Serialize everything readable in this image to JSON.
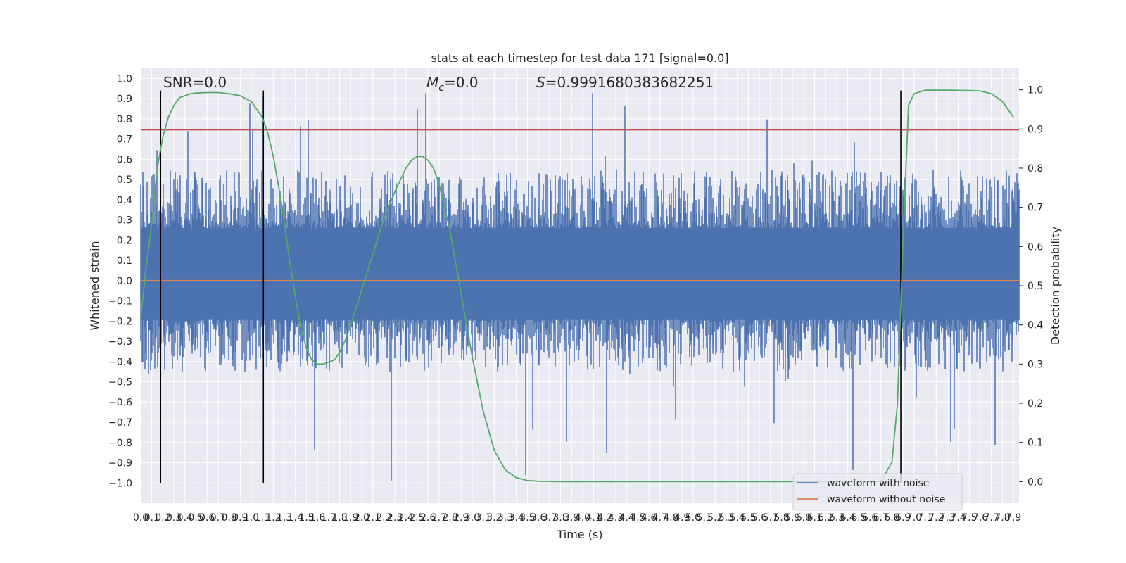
{
  "chart_data": {
    "type": "line",
    "title": "stats at each timestep for test data 171 [signal=0.0]",
    "xlabel": "Time (s)",
    "ylabel": "Whitened strain",
    "ylabel_right": "Detection probability",
    "xlim": [
      0.0,
      7.95
    ],
    "ylim": [
      -1.1,
      1.05
    ],
    "ylim_right": [
      -0.055,
      1.055
    ],
    "x_ticks": [
      0.0,
      0.1,
      0.2,
      0.3,
      0.4,
      0.5,
      0.6,
      0.7,
      0.8,
      0.9,
      1.0,
      1.1,
      1.2,
      1.3,
      1.4,
      1.5,
      1.6,
      1.7,
      1.8,
      1.9,
      2.0,
      2.1,
      2.2,
      2.3,
      2.4,
      2.5,
      2.6,
      2.7,
      2.8,
      2.9,
      3.0,
      3.1,
      3.2,
      3.3,
      3.4,
      3.5,
      3.6,
      3.7,
      3.8,
      3.9,
      4.0,
      4.1,
      4.2,
      4.3,
      4.4,
      4.5,
      4.6,
      4.7,
      4.8,
      4.9,
      5.0,
      5.1,
      5.2,
      5.3,
      5.4,
      5.5,
      5.6,
      5.7,
      5.8,
      5.9,
      6.0,
      6.1,
      6.2,
      6.3,
      6.4,
      6.5,
      6.6,
      6.7,
      6.8,
      6.9,
      7.0,
      7.1,
      7.2,
      7.3,
      7.4,
      7.5,
      7.6,
      7.7,
      7.8,
      7.9
    ],
    "y_ticks": [
      "1.0",
      "0.9",
      "0.8",
      "0.7",
      "0.6",
      "0.5",
      "0.4",
      "0.3",
      "0.2",
      "0.1",
      "0.0",
      "−0.1",
      "−0.2",
      "−0.3",
      "−0.4",
      "−0.5",
      "−0.6",
      "−0.7",
      "−0.8",
      "−0.9",
      "−1.0"
    ],
    "y_right_ticks": [
      "1.0",
      "0.9",
      "0.8",
      "0.7",
      "0.6",
      "0.5",
      "0.4",
      "0.3",
      "0.2",
      "0.1",
      "0.0"
    ],
    "grid": true,
    "legend_position": "lower-right",
    "annotations": {
      "snr": "SNR=0.0",
      "mc_symbol": "M",
      "mc_subscript": "c",
      "mc_value": "=0.0",
      "s_symbol": "S",
      "s_value": "=0.9991680383682251"
    },
    "threshold": {
      "value": 0.745,
      "color": "#c44e52"
    },
    "marker_lines_x": [
      0.18,
      1.11,
      6.88
    ],
    "marker_lines_yrange": [
      -1.0,
      0.94
    ],
    "series": [
      {
        "name": "waveform with noise",
        "color": "#4c72b0",
        "kind": "noise",
        "sample_rate": 1024,
        "baseline": 0.06,
        "typical_max": 0.55,
        "typical_min": -0.45,
        "peak_max": 0.94,
        "peak_min": -1.0
      },
      {
        "name": "waveform without noise",
        "color": "#dd8452",
        "kind": "flat",
        "value": 0.0
      },
      {
        "name": "Detection probability",
        "color": "#55a868",
        "axis": "right",
        "x": [
          0.0,
          0.05,
          0.1,
          0.15,
          0.2,
          0.25,
          0.3,
          0.35,
          0.4,
          0.45,
          0.5,
          0.6,
          0.7,
          0.8,
          0.9,
          1.0,
          1.05,
          1.1,
          1.15,
          1.2,
          1.25,
          1.3,
          1.35,
          1.4,
          1.45,
          1.5,
          1.55,
          1.6,
          1.65,
          1.7,
          1.75,
          1.8,
          1.85,
          1.9,
          2.0,
          2.1,
          2.2,
          2.3,
          2.4,
          2.45,
          2.5,
          2.55,
          2.6,
          2.65,
          2.7,
          2.8,
          2.9,
          3.0,
          3.1,
          3.2,
          3.3,
          3.4,
          3.5,
          3.6,
          3.8,
          4.0,
          4.5,
          5.0,
          5.5,
          6.0,
          6.5,
          6.7,
          6.8,
          6.85,
          6.9,
          6.95,
          7.0,
          7.1,
          7.3,
          7.5,
          7.6,
          7.7,
          7.8,
          7.9
        ],
        "values": [
          0.42,
          0.55,
          0.66,
          0.8,
          0.88,
          0.93,
          0.96,
          0.98,
          0.985,
          0.99,
          0.992,
          0.993,
          0.993,
          0.99,
          0.985,
          0.97,
          0.95,
          0.93,
          0.89,
          0.83,
          0.75,
          0.66,
          0.56,
          0.47,
          0.39,
          0.34,
          0.31,
          0.3,
          0.3,
          0.305,
          0.31,
          0.33,
          0.36,
          0.4,
          0.49,
          0.58,
          0.67,
          0.74,
          0.8,
          0.82,
          0.83,
          0.83,
          0.82,
          0.8,
          0.76,
          0.64,
          0.48,
          0.32,
          0.18,
          0.08,
          0.03,
          0.01,
          0.003,
          0.001,
          0.0,
          0.0,
          0.0,
          0.0,
          0.0,
          0.0,
          0.0,
          0.0,
          0.05,
          0.2,
          0.62,
          0.96,
          0.99,
          0.999,
          0.999,
          0.998,
          0.997,
          0.99,
          0.97,
          0.93
        ]
      }
    ]
  }
}
